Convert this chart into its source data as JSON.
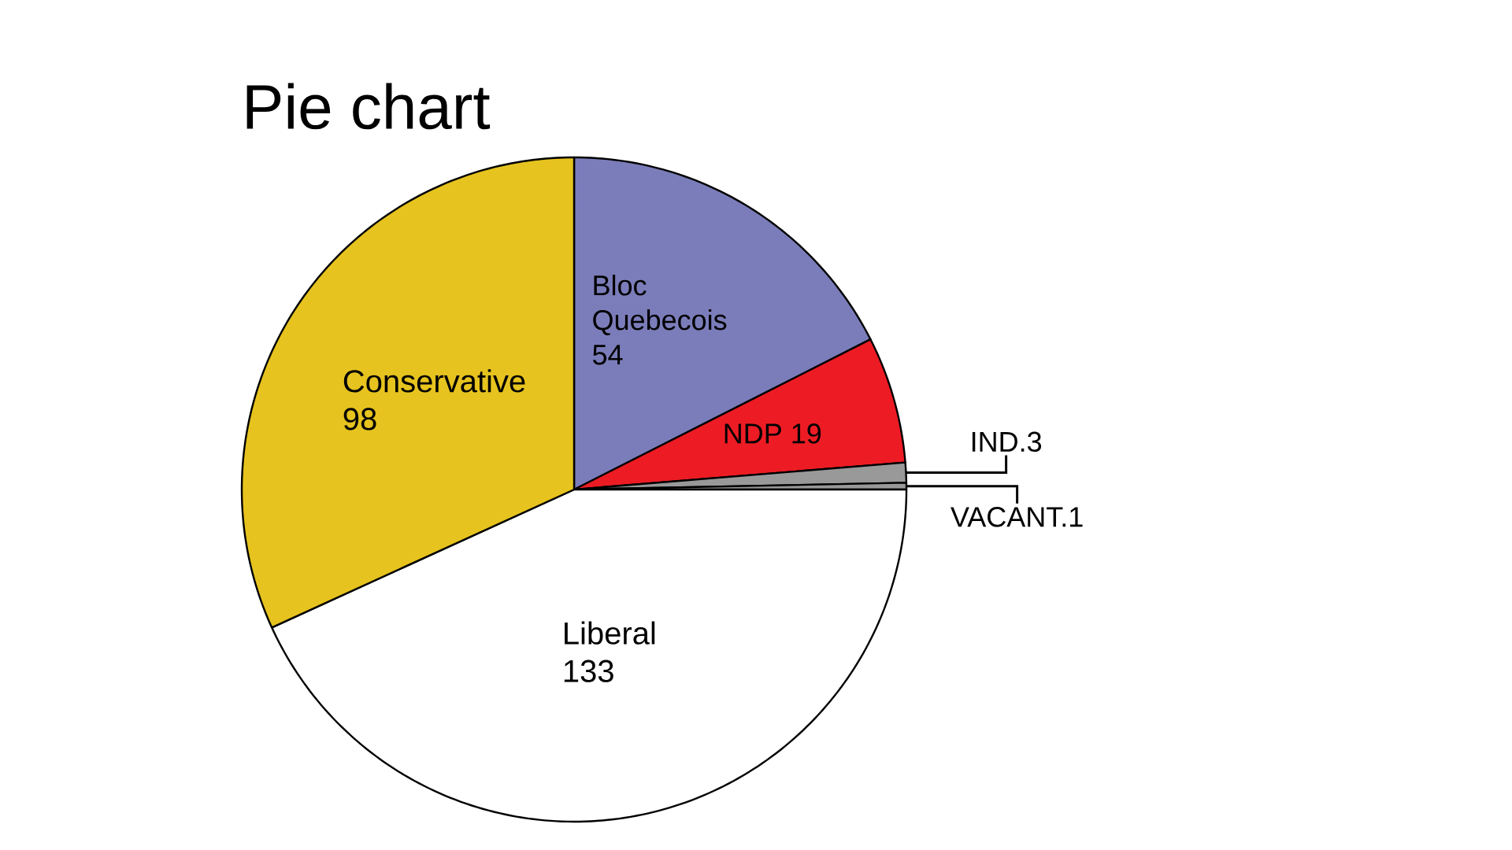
{
  "chart_data": {
    "type": "pie",
    "title": "Pie chart",
    "categories": [
      "Bloc Quebecois",
      "NDP",
      "IND.",
      "VACANT.",
      "Liberal",
      "Conservative"
    ],
    "values": [
      54,
      19,
      3,
      1,
      133,
      98
    ],
    "colors": [
      "#7b7dba",
      "#ed1c24",
      "#999999",
      "#999999",
      "#ffffff",
      "#e6c31e"
    ],
    "data_labels": true
  }
}
